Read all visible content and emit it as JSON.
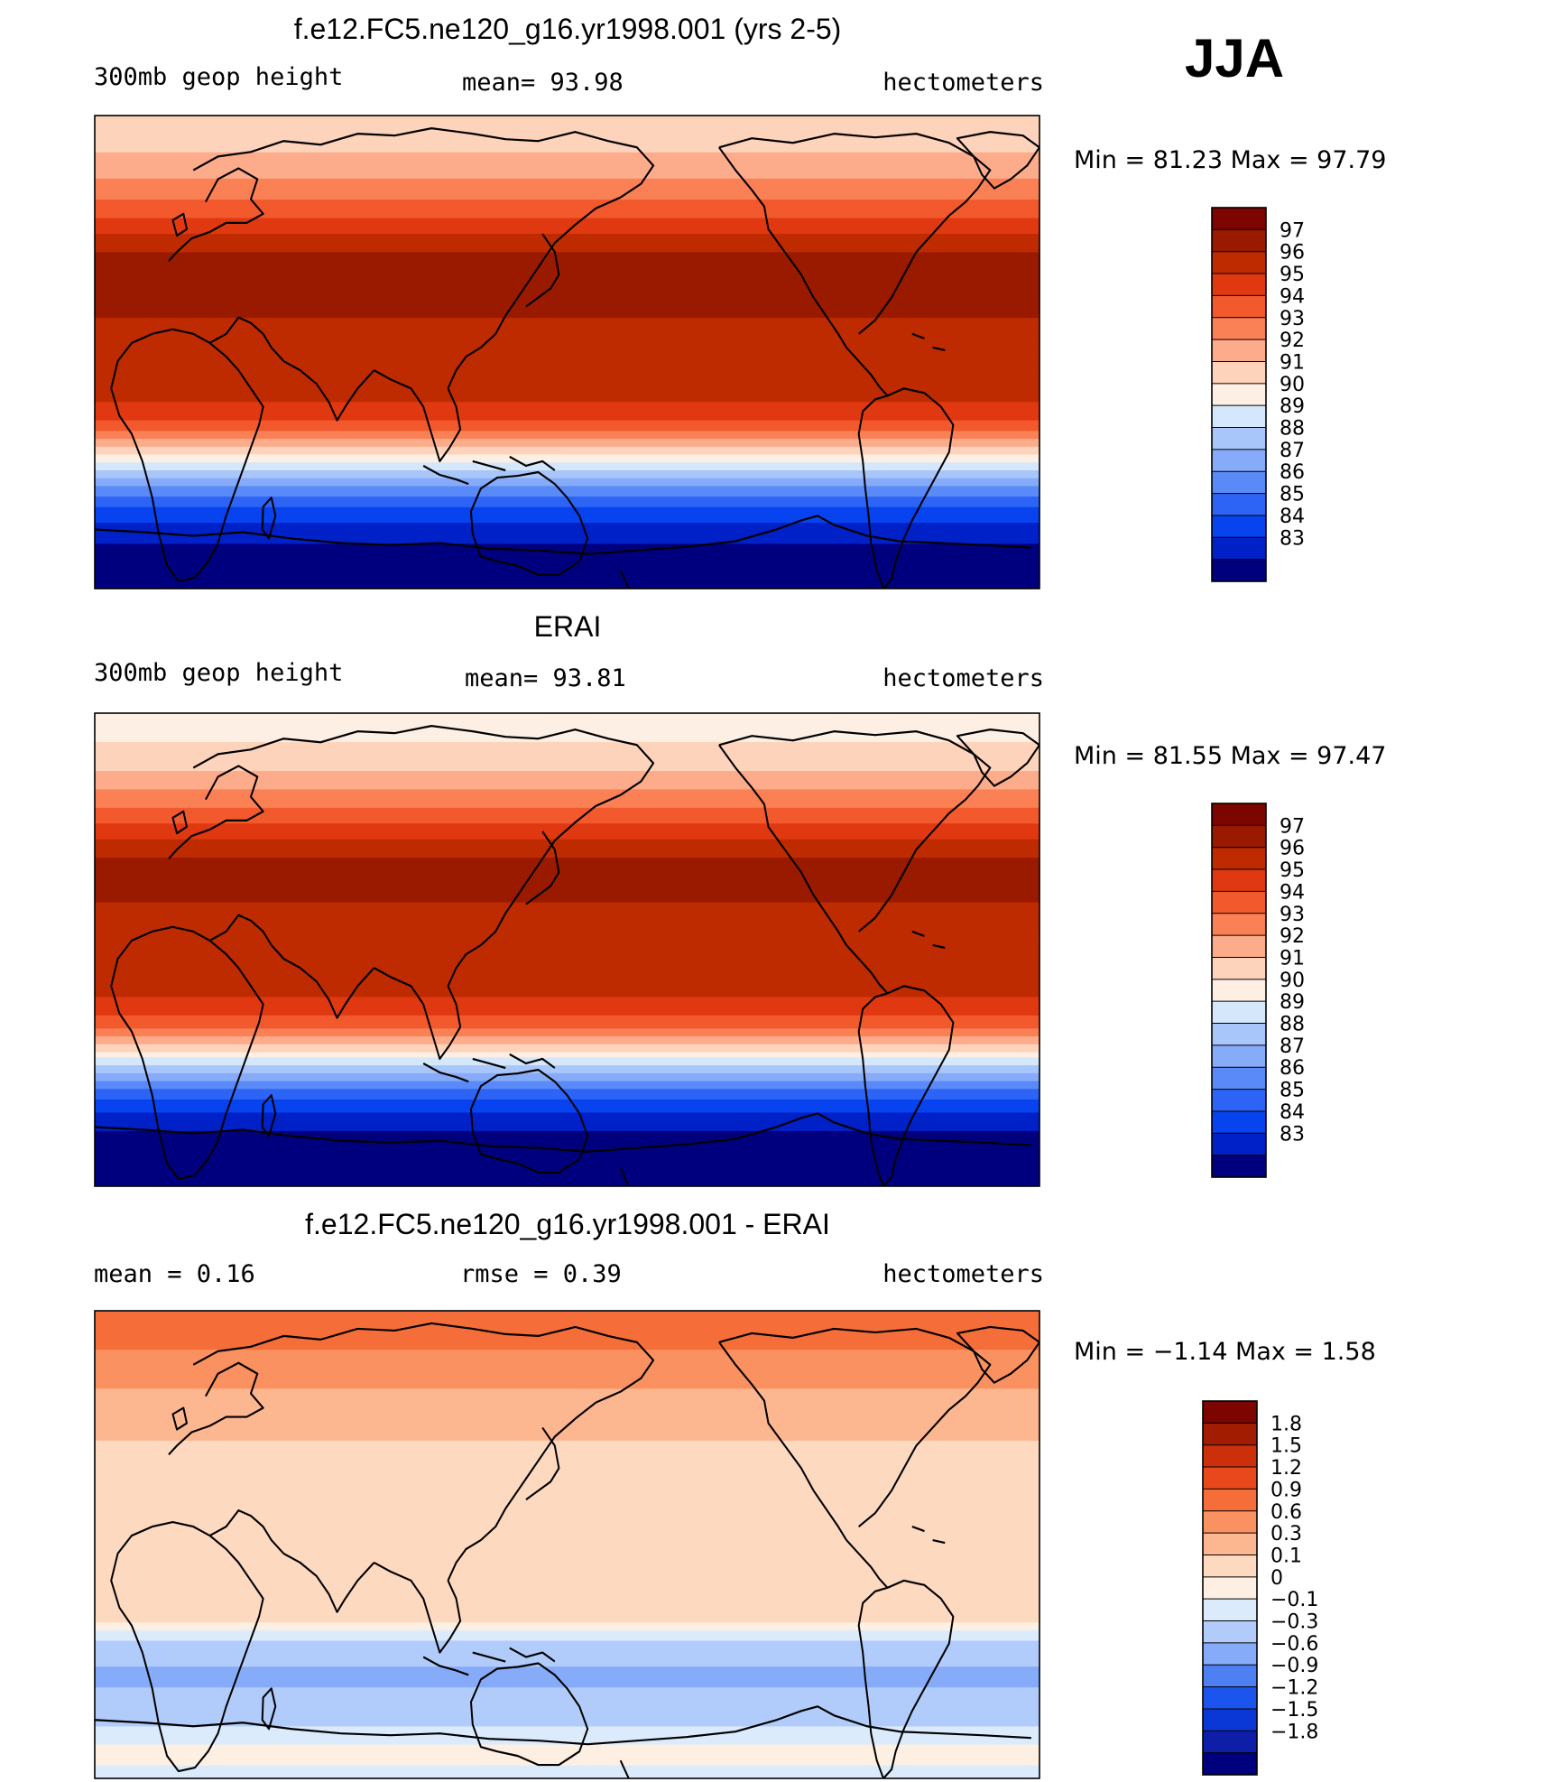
{
  "season": "JJA",
  "colors": {
    "abs": [
      "#00007e",
      "#0021c8",
      "#0743ee",
      "#2d64f6",
      "#5a8af7",
      "#86abf8",
      "#a9c6fa",
      "#d4e7fb",
      "#fdefe3",
      "#fdd3bb",
      "#fcac8a",
      "#fa8055",
      "#f2592d",
      "#e03810",
      "#bf2b00",
      "#9a1a00",
      "#7c0500"
    ],
    "diff": [
      "#00007e",
      "#0e1ea8",
      "#0a38d6",
      "#1c55ee",
      "#4e80f4",
      "#86abf8",
      "#b1ccfa",
      "#dbebfc",
      "#fdf0e3",
      "#fdd9c0",
      "#fcb690",
      "#fa9160",
      "#f56e3a",
      "#e8481c",
      "#cc300b",
      "#a11c00",
      "#7c0500"
    ]
  },
  "chart_data": [
    {
      "type": "heatmap",
      "title": "f.e12.FC5.ne120_g16.yr1998.001 (yrs 2-5)",
      "left_label": "300mb geop height",
      "center_label": "mean=   93.98",
      "right_label": "hectometers",
      "mean": 93.98,
      "stats": "Min =   81.23 Max =   97.79",
      "min": 81.23,
      "max": 97.79,
      "colorbar_levels": [
        "97",
        "96",
        "95",
        "94",
        "93",
        "92",
        "91",
        "90",
        "89",
        "88",
        "87",
        "86",
        "85",
        "84",
        "83"
      ],
      "zonal_profile": {
        "lat": [
          90,
          80,
          70,
          60,
          50,
          45,
          40,
          35,
          30,
          25,
          20,
          15,
          10,
          0,
          -10,
          -20,
          -25,
          -30,
          -35,
          -40,
          -45,
          -50,
          -55,
          -60,
          -65,
          -70,
          -80,
          -90
        ],
        "value": [
          90.6,
          91.2,
          92.0,
          93.2,
          94.6,
          95.5,
          96.3,
          96.9,
          97.2,
          97.3,
          97.0,
          96.6,
          96.4,
          96.3,
          96.1,
          95.4,
          94.7,
          93.6,
          92.0,
          90.3,
          88.6,
          86.9,
          85.4,
          84.3,
          83.5,
          82.7,
          82.0,
          81.6
        ]
      }
    },
    {
      "type": "heatmap",
      "title": "ERAI",
      "left_label": "300mb geop height",
      "center_label": "mean=   93.81",
      "right_label": "hectometers",
      "mean": 93.81,
      "stats": "Min =   81.55 Max =   97.47",
      "min": 81.55,
      "max": 97.47,
      "colorbar_levels": [
        "97",
        "96",
        "95",
        "94",
        "93",
        "92",
        "91",
        "90",
        "89",
        "88",
        "87",
        "86",
        "85",
        "84",
        "83"
      ],
      "zonal_profile": {
        "lat": [
          90,
          80,
          70,
          60,
          50,
          45,
          40,
          35,
          30,
          25,
          20,
          15,
          10,
          0,
          -10,
          -20,
          -25,
          -30,
          -35,
          -40,
          -45,
          -50,
          -55,
          -60,
          -65,
          -70,
          -80,
          -90
        ],
        "value": [
          89.6,
          90.4,
          91.3,
          92.6,
          94.1,
          95.0,
          95.9,
          96.5,
          96.9,
          97.0,
          96.7,
          96.3,
          96.2,
          96.1,
          96.0,
          95.4,
          94.6,
          93.4,
          91.8,
          90.0,
          88.2,
          86.5,
          85.0,
          83.9,
          83.1,
          82.4,
          81.9,
          81.7
        ]
      }
    },
    {
      "type": "heatmap",
      "title": "f.e12.FC5.ne120_g16.yr1998.001 - ERAI",
      "left_label": "mean =    0.16",
      "center_label": "rmse =    0.39",
      "right_label": "hectometers",
      "mean": 0.16,
      "rmse": 0.39,
      "stats": "Min =  −1.14 Max =    1.58",
      "min": -1.14,
      "max": 1.58,
      "colorbar_levels": [
        "1.8",
        "1.5",
        "1.2",
        "0.9",
        "0.6",
        "0.3",
        "0.1",
        "0",
        "−0.1",
        "−0.3",
        "−0.6",
        "−0.9",
        "−1.2",
        "−1.5",
        "−1.8"
      ],
      "zonal_profile": {
        "lat": [
          90,
          80,
          70,
          60,
          50,
          40,
          30,
          20,
          10,
          0,
          -10,
          -20,
          -30,
          -40,
          -50,
          -60,
          -70,
          -80,
          -90
        ],
        "value": [
          0.9,
          0.9,
          0.6,
          0.45,
          0.3,
          0.2,
          0.05,
          0.1,
          0.1,
          0.1,
          0.15,
          0.2,
          0.05,
          -0.3,
          -0.5,
          -0.4,
          -0.2,
          0.0,
          -0.1
        ]
      }
    }
  ]
}
